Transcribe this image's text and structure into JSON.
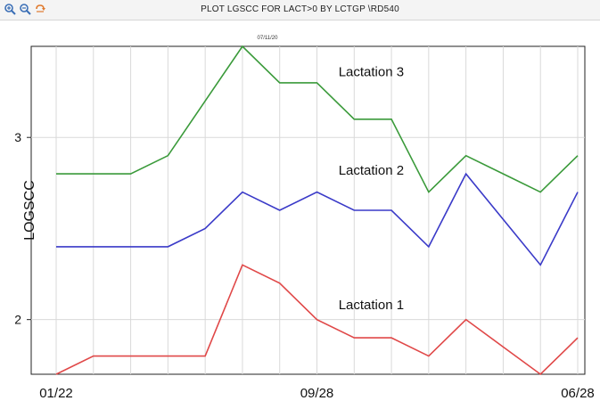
{
  "toolbar": {
    "icons": [
      "zoom-in-icon",
      "zoom-out-icon",
      "reset-icon"
    ]
  },
  "window": {
    "title": "PLOT LGSCC FOR LACT>0 BY LCTGP \\RD540",
    "date_stamp": "07/11/20"
  },
  "chart_data": {
    "type": "line",
    "title": "",
    "ylabel": "LOGSCC",
    "xlabel": "",
    "x_tick_labels": [
      {
        "label": "01/22",
        "index": 0
      },
      {
        "label": "09/28",
        "index": 7
      },
      {
        "label": "06/28",
        "index": 14
      }
    ],
    "ylim": [
      1.7,
      3.5
    ],
    "y_ticks": [
      2,
      3
    ],
    "grid": true,
    "series": [
      {
        "name": "Lactation 3",
        "color": "#3a9a3a",
        "values": [
          2.8,
          2.8,
          2.8,
          2.9,
          3.2,
          3.5,
          3.3,
          3.3,
          3.1,
          3.1,
          2.7,
          2.9,
          2.8,
          2.7,
          2.9
        ]
      },
      {
        "name": "Lactation 2",
        "color": "#3a3ac8",
        "values": [
          2.4,
          2.4,
          2.4,
          2.4,
          2.5,
          2.7,
          2.6,
          2.7,
          2.6,
          2.6,
          2.4,
          2.8,
          2.55,
          2.3,
          2.7
        ]
      },
      {
        "name": "Lactation 1",
        "color": "#e04848",
        "values": [
          1.7,
          1.8,
          1.8,
          1.8,
          1.8,
          2.3,
          2.2,
          2.0,
          1.9,
          1.9,
          1.8,
          2.0,
          1.85,
          1.7,
          1.9
        ]
      }
    ]
  }
}
